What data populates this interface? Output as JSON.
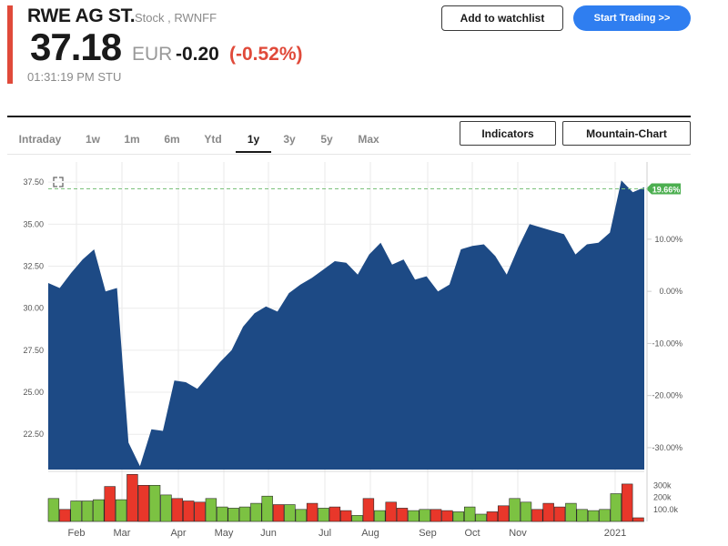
{
  "header": {
    "title": "RWE AG ST.",
    "subtitle": "Stock , RWNFF",
    "price": "37.18",
    "currency": "EUR",
    "change": "-0.20",
    "change_pct": "(-0.52%)",
    "time": "01:31:19 PM STU",
    "watchlist_label": "Add to watchlist",
    "trade_label": "Start Trading >>"
  },
  "tabs": [
    "Intraday",
    "1w",
    "1m",
    "6m",
    "Ytd",
    "1y",
    "3y",
    "5y",
    "Max"
  ],
  "active_tab": "1y",
  "tools": {
    "indicators_label": "Indicators",
    "chart_type_label": "Mountain-Chart"
  },
  "colors": {
    "area": "#1d4a85",
    "up": "#7cc242",
    "down": "#e8372a",
    "accent": "#e04a3a",
    "button": "#2f7ef0",
    "badge": "#4caf50"
  },
  "chart_data": {
    "type": "area",
    "title": "RWE AG ST. 1y",
    "x_labels": [
      "Feb",
      "Mar",
      "Apr",
      "May",
      "Jun",
      "Jul",
      "Aug",
      "Sep",
      "Oct",
      "Nov",
      "2021"
    ],
    "y_ticks_left": [
      "37.50",
      "35.00",
      "32.50",
      "30.00",
      "27.50",
      "25.00",
      "22.50"
    ],
    "y_ticks_right": [
      "10.00%",
      "0.00%",
      "-10.00%",
      "-20.00%",
      "-30.00%"
    ],
    "ylim": [
      20.4,
      38.7
    ],
    "baseline_label": "19.66%",
    "baseline_value": 37.1,
    "price": [
      31.5,
      31.2,
      32.1,
      32.9,
      33.5,
      31.0,
      31.2,
      22.0,
      20.6,
      22.8,
      22.7,
      25.7,
      25.6,
      25.2,
      26.0,
      26.8,
      27.5,
      28.9,
      29.7,
      30.1,
      29.8,
      30.9,
      31.4,
      31.8,
      32.3,
      32.8,
      32.7,
      32.0,
      33.2,
      33.9,
      32.6,
      32.9,
      31.7,
      31.9,
      31.0,
      31.4,
      33.5,
      33.7,
      33.8,
      33.1,
      32.0,
      33.6,
      35.0,
      34.8,
      34.6,
      34.4,
      33.2,
      33.8,
      33.9,
      34.5,
      37.6,
      36.9,
      37.2
    ]
  },
  "volume_data": {
    "y_ticks": [
      "300k",
      "200k",
      "100.0k"
    ],
    "values": [
      190,
      100,
      170,
      170,
      180,
      290,
      180,
      390,
      300,
      300,
      220,
      190,
      170,
      160,
      190,
      120,
      110,
      120,
      150,
      210,
      140,
      140,
      100,
      150,
      110,
      120,
      90,
      50,
      190,
      90,
      160,
      110,
      90,
      100,
      100,
      90,
      80,
      120,
      60,
      80,
      130,
      190,
      160,
      100,
      150,
      120,
      150,
      100,
      90,
      100,
      230,
      310,
      30
    ],
    "direction": [
      "u",
      "d",
      "u",
      "u",
      "u",
      "d",
      "u",
      "d",
      "d",
      "u",
      "u",
      "d",
      "d",
      "d",
      "u",
      "u",
      "u",
      "u",
      "u",
      "u",
      "d",
      "u",
      "u",
      "d",
      "u",
      "d",
      "d",
      "u",
      "d",
      "u",
      "d",
      "d",
      "u",
      "u",
      "d",
      "d",
      "u",
      "u",
      "u",
      "d",
      "d",
      "u",
      "u",
      "d",
      "d",
      "d",
      "u",
      "u",
      "u",
      "u",
      "u",
      "d",
      "d"
    ]
  }
}
